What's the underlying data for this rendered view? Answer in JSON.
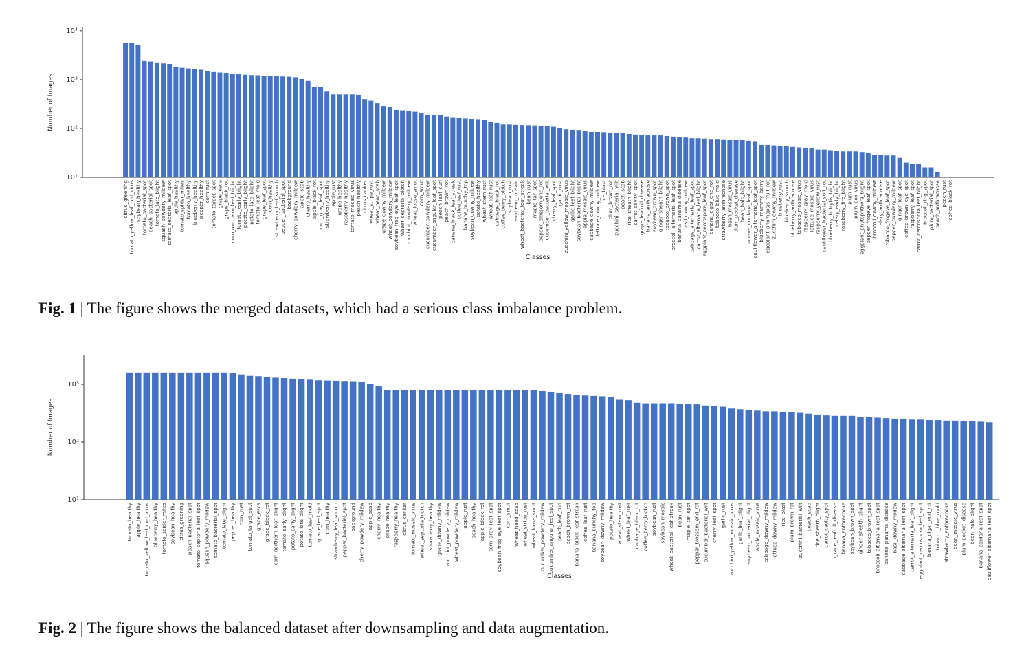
{
  "chart_data": [
    {
      "type": "bar",
      "log": true,
      "color": "#4472c4",
      "xlabel": "Classes",
      "ylabel": "Number of Images",
      "caption": {
        "label": "Fig. 1",
        "text": "| The figure shows the merged datasets, which had a serious class imbalance problem."
      },
      "ylim": [
        10,
        11700
      ],
      "yticks": [
        {
          "value": 10,
          "label": "10¹"
        },
        {
          "value": 100,
          "label": "10²"
        },
        {
          "value": 1000,
          "label": "10³"
        },
        {
          "value": 10000,
          "label": "10⁴"
        }
      ],
      "categories": [
        "citrus_greening",
        "tomato_yellow_leaf_curl_virus",
        "soybean_healthy",
        "tomato_bacterial_spot",
        "peach_bacterial_spot",
        "tomato_late_blight",
        "squash_powdery_mildew",
        "tomato_septoria_leaf_spot",
        "apple_healthy",
        "tomato_spider_mites",
        "tomato_healthy",
        "blueberry_healthy",
        "pepper_healthy",
        "corn_rust",
        "tomato_target_spot",
        "grape_esca",
        "grape_black_rot",
        "corn_northern_leaf_blight",
        "tomato_early_blight",
        "potato_early_blight",
        "potato_late_blight",
        "tomato_leaf_mold",
        "grape_leaf_spot",
        "corn_healthy",
        "strawberry_leaf_scorch",
        "pepper_bacterial_spot",
        "background",
        "cherry_powdery_mildew",
        "apple_scab",
        "cherry_healthy",
        "apple_black_rot",
        "corn_gray_leaf_spot",
        "strawberry_healthy",
        "apple_rust",
        "grape_healthy",
        "raspberry_healthy",
        "tomato_mosaic_virus",
        "peach_healthy",
        "citrus_canker",
        "wheat_stripe_rust",
        "wheat_head_scab",
        "grape_downy_mildew",
        "wheat_powdery_mildew",
        "soybean_frog_eye_leaf_spot",
        "wheat_septoria_blotch",
        "zucchini_powdery_mildew",
        "wheat_loose_smut",
        "corn_smut",
        "cucumber_powdery_mildew",
        "cucumber_angular_leaf_spot",
        "peach_leaf_curl",
        "peach_brown_rot",
        "banana_black_leaf_streak",
        "coffee_leaf_rust",
        "banana_bunchy_top",
        "soybean_downy_mildew",
        "potato_healthy",
        "wheat_stem_rust",
        "wheat_leaf_rust",
        "cabbage_black_rot",
        "coffee_berry_blotch",
        "soybean_rust",
        "soybean_mosaic",
        "wheat_bacterial_leaf_streak",
        "bean_rust",
        "maple_tar_spot",
        "pepper_blossom_end_rot",
        "cucumber_bacterial_wilt",
        "cherry_leaf_spot",
        "garlic_rust",
        "zucchini_yellow_mosaic_virus",
        "garlic_leaf_blight",
        "soybean_bacterial_blight",
        "apple_mosaic_virus",
        "cabbage_downy_mildew",
        "lettuce_downy_mildew",
        "rice_blast",
        "plum_brown_rot",
        "zucchini_bacterial_wilt",
        "peach_scab",
        "rice_sheath_blight",
        "carrot_cavity_spot",
        "grape_leafroll_disease",
        "banana_anthracnose",
        "soybean_brown_spot",
        "ginger_sheath_blight",
        "tobacco_brown_spot",
        "broccoli_alternaria_leaf_spot",
        "banana_panama_disease",
        "basil_downy_mildew",
        "cabbage_alternaria_leaf_spot",
        "carrot_alternaria_leaf_blight",
        "eggplant_cercospora_leaf_spot",
        "banana_cigar_end_rot",
        "tobacco_blue_mold",
        "strawberry_anthracnose",
        "bean_mosaic_virus",
        "plum_pocket_disease",
        "bean_halo_blight",
        "banana_cordana_leaf_spot",
        "cauliflower_alternaria_leaf_spot",
        "blueberry_mummy_berry",
        "eggplant_phomopsis_fruit_rot",
        "zucchini_downy_mildew",
        "blueberry_rust",
        "blueberry_scorch",
        "blueberry_anthracnose",
        "tobacco_mosaic_virus",
        "raspberry_gray_mold",
        "lettuce_mosaic_virus",
        "raspberry_yellow_rust",
        "cauliflower_bacterial_soft_rot",
        "blueberry_botrytis_blight",
        "celery_early_blight",
        "raspberry_fire_blight",
        "plum_rust",
        "plum_pox_virus",
        "eggplant_phytophthora_blight",
        "pepper_frogeye_leaf_spot",
        "broccoli_downy_mildew",
        "celery_anthracnose",
        "tobacco_frogeye_leaf_spot",
        "pepper_powdery_mildew",
        "ginger_leaf_spot",
        "coffee_brown_eye_spot",
        "raspberry_leaf_spot",
        "carrot_cercospora_leaf_blight",
        "broccoli_ring_spot",
        "plum_bacterial_spot",
        "peach_anthracnose",
        "peach_rust",
        "coffee_black_rot"
      ],
      "values": [
        5700,
        5600,
        5200,
        2400,
        2350,
        2250,
        2150,
        2100,
        1790,
        1750,
        1700,
        1650,
        1600,
        1500,
        1430,
        1400,
        1380,
        1330,
        1290,
        1260,
        1240,
        1230,
        1200,
        1180,
        1170,
        1160,
        1150,
        1120,
        1030,
        940,
        720,
        700,
        570,
        500,
        500,
        500,
        500,
        490,
        400,
        370,
        330,
        290,
        280,
        240,
        235,
        230,
        220,
        205,
        190,
        185,
        185,
        175,
        170,
        165,
        160,
        157,
        155,
        152,
        135,
        130,
        120,
        120,
        118,
        117,
        116,
        115,
        113,
        110,
        108,
        103,
        96,
        94,
        93,
        90,
        85,
        85,
        84,
        82,
        82,
        80,
        77,
        75,
        73,
        72,
        72,
        72,
        70,
        68,
        66,
        65,
        63,
        63,
        62,
        61,
        61,
        60,
        59,
        58,
        58,
        56,
        55,
        46,
        46,
        45,
        44,
        43,
        42,
        41,
        40,
        40,
        37,
        37,
        36,
        35,
        34,
        34,
        34,
        33,
        32,
        29,
        29,
        28,
        28,
        25,
        20,
        19,
        19,
        16,
        16,
        13,
        9,
        8
      ]
    },
    {
      "type": "bar",
      "log": true,
      "color": "#4472c4",
      "xlabel": "Classes",
      "ylabel": "Number of Images",
      "caption": {
        "label": "Fig. 2",
        "text": "| The figure shows the balanced dataset after downsampling and data augmentation."
      },
      "ylim": [
        10,
        3250
      ],
      "yticks": [
        {
          "value": 10,
          "label": "10¹"
        },
        {
          "value": 100,
          "label": "10²"
        },
        {
          "value": 1000,
          "label": "10³"
        }
      ],
      "categories": [
        "tomato_healthy",
        "apple_healthy",
        "tomato_yellow_leaf_curl_virus",
        "blueberry_healthy",
        "tomato_spider_mites",
        "soybean_healthy",
        "citrus_greening",
        "peach_bacterial_spot",
        "tomato_septoria_leaf_spot",
        "squash_powdery_mildew",
        "tomato_bacterial_spot",
        "tomato_late_blight",
        "pepper_healthy",
        "corn_rust",
        "tomato_target_spot",
        "grape_esca",
        "grape_black_rot",
        "corn_northern_leaf_blight",
        "tomato_early_blight",
        "potato_early_blight",
        "potato_late_blight",
        "tomato_leaf_mold",
        "grape_leaf_spot",
        "corn_healthy",
        "strawberry_leaf_scorch",
        "pepper_bacterial_spot",
        "background",
        "cherry_powdery_mildew",
        "apple_scab",
        "cherry_healthy",
        "grape_healthy",
        "raspberry_healthy",
        "citrus_canker",
        "tomato_mosaic_virus",
        "wheat_septoria_blotch",
        "strawberry_healthy",
        "grape_downy_mildew",
        "zucchini_powdery_mildew",
        "wheat_powdery_mildew",
        "apple_rust",
        "peach_healthy",
        "apple_black_rot",
        "corn_gray_leaf_spot",
        "soybean_frog_eye_leaf_spot",
        "corn_smut",
        "wheat_head_scab",
        "wheat_stripe_rust",
        "wheat_loose_smut",
        "cucumber_powdery_mildew",
        "cucumber_angular_leaf_spot",
        "peach_leaf_curl",
        "peach_brown_rot",
        "banana_black_leaf_streak",
        "coffee_leaf_rust",
        "banana_bunchy_top",
        "soybean_downy_mildew",
        "potato_healthy",
        "wheat_stem_rust",
        "wheat_leaf_rust",
        "cabbage_black_rot",
        "coffee_berry_blotch",
        "soybean_rust",
        "soybean_mosaic",
        "wheat_bacterial_leaf_streak",
        "bean_rust",
        "maple_tar_spot",
        "pepper_blossom_end_rot",
        "cucumber_bacterial_wilt",
        "cherry_leaf_spot",
        "garlic_rust",
        "zucchini_yellow_mosaic_virus",
        "garlic_leaf_blight",
        "soybean_bacterial_blight",
        "apple_mosaic_virus",
        "cabbage_downy_mildew",
        "lettuce_downy_mildew",
        "rice_blast",
        "plum_brown_rot",
        "zucchini_bacterial_wilt",
        "peach_scab",
        "rice_sheath_blight",
        "carrot_cavity_spot",
        "grape_leafroll_disease",
        "banana_anthracnose",
        "soybean_brown_spot",
        "ginger_sheath_blight",
        "tobacco_brown_spot",
        "broccoli_alternaria_leaf_spot",
        "banana_panama_disease",
        "basil_downy_mildew",
        "cabbage_alternaria_leaf_spot",
        "carrot_alternaria_leaf_blight",
        "eggplant_cercospora_leaf_spot",
        "banana_cigar_end_rot",
        "tobacco_blue_mold",
        "strawberry_anthracnose",
        "bean_mosaic_virus",
        "plum_pocket_disease",
        "bean_halo_blight",
        "banana_cordana_leaf_spot",
        "cauliflower_alternaria_leaf_spot"
      ],
      "values": [
        1600,
        1600,
        1600,
        1600,
        1600,
        1600,
        1600,
        1600,
        1600,
        1600,
        1600,
        1600,
        1550,
        1480,
        1400,
        1380,
        1350,
        1300,
        1280,
        1250,
        1220,
        1200,
        1170,
        1160,
        1150,
        1140,
        1130,
        1110,
        1000,
        920,
        800,
        800,
        800,
        800,
        800,
        800,
        800,
        800,
        800,
        800,
        800,
        800,
        800,
        800,
        800,
        800,
        800,
        800,
        760,
        740,
        720,
        680,
        660,
        640,
        630,
        620,
        610,
        540,
        530,
        480,
        470,
        470,
        470,
        470,
        460,
        460,
        450,
        430,
        420,
        410,
        380,
        370,
        360,
        350,
        340,
        340,
        330,
        325,
        320,
        310,
        300,
        290,
        285,
        285,
        285,
        275,
        270,
        265,
        260,
        255,
        255,
        245,
        245,
        240,
        240,
        235,
        235,
        230,
        228,
        225,
        220
      ]
    }
  ]
}
